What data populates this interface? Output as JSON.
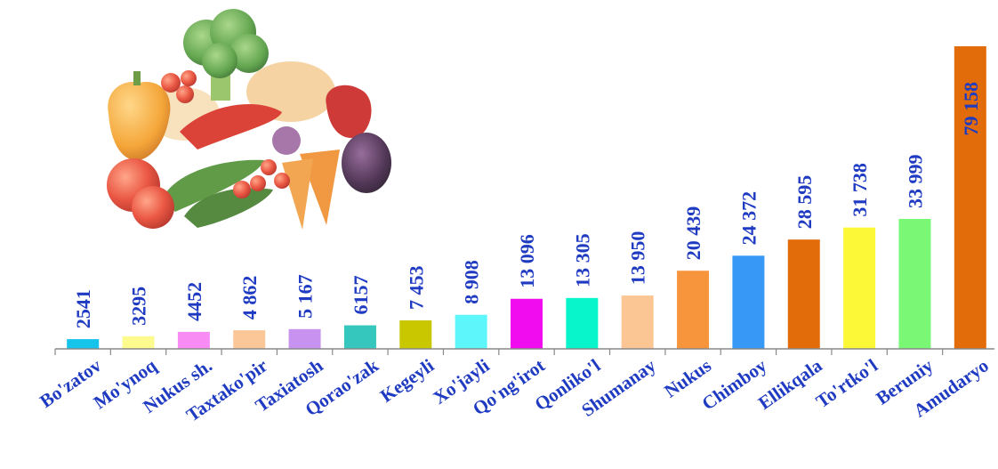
{
  "chart_data": {
    "type": "bar",
    "title": "",
    "xlabel": "",
    "ylabel": "",
    "ylim": [
      0,
      82000
    ],
    "grid": false,
    "legend": "none",
    "categories": [
      "Bo'zatov",
      "Mo'ynoq",
      "Nukus sh.",
      "Taxtako'pir",
      "Taxiatosh",
      "Qorao'zak",
      "Kegeyli",
      "Xo'jayli",
      "Qo'ng'irot",
      "Qonliko'l",
      "Shumanay",
      "Nukus",
      "Chimboy",
      "Ellikqala",
      "To'rtko'l",
      "Beruniy",
      "Amudaryo"
    ],
    "values": [
      2541,
      3295,
      4452,
      4862,
      5167,
      6157,
      7453,
      8908,
      13096,
      13305,
      13950,
      20439,
      24372,
      28595,
      31738,
      33999,
      79158
    ],
    "value_labels": [
      "2541",
      "3295",
      "4452",
      "4 862",
      "5 167",
      "6157",
      "7 453",
      "8 908",
      "13 096",
      "13 305",
      "13 950",
      "20 439",
      "24 372",
      "28 595",
      "31 738",
      "33 999",
      "79 158"
    ],
    "colors": [
      "#16c3ea",
      "#fdfa8e",
      "#f98cf4",
      "#fbc799",
      "#c893f0",
      "#35c7bd",
      "#c9c800",
      "#5df7fb",
      "#f10cef",
      "#08f5cb",
      "#fcc594",
      "#f7953d",
      "#3898f6",
      "#e36c0a",
      "#fcf838",
      "#7af774",
      "#e36c0a"
    ],
    "label_color": "#1f3bc2",
    "tick_color": "#1f3bc2"
  }
}
